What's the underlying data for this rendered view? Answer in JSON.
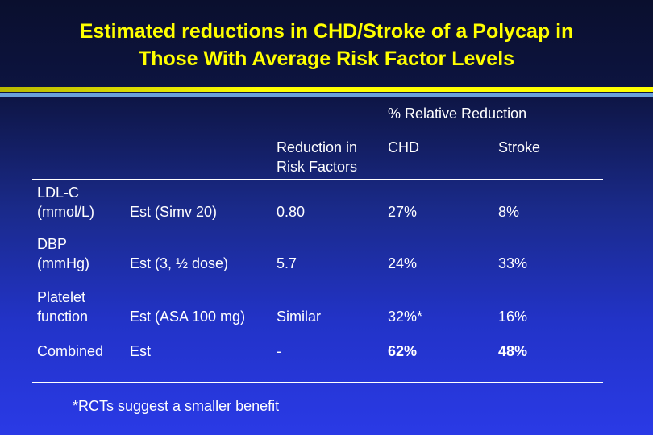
{
  "slide": {
    "title_line1": "Estimated reductions in CHD/Stroke of a Polycap in",
    "title_line2": "Those With Average Risk Factor Levels"
  },
  "table": {
    "group_header": "% Relative Reduction",
    "headers": {
      "reduction_line1": "Reduction in",
      "reduction_line2": "Risk Factors",
      "chd": "CHD",
      "stroke": "Stroke"
    },
    "rows": [
      {
        "factor_line1": "LDL-C",
        "factor_line2": "(mmol/L)",
        "estimate": "Est (Simv  20)",
        "reduction": "0.80",
        "chd": "27%",
        "stroke": "8%"
      },
      {
        "factor_line1": "DBP",
        "factor_line2": "(mmHg)",
        "estimate": "Est (3, ½ dose)",
        "reduction": "5.7",
        "chd": "24%",
        "stroke": "33%"
      },
      {
        "factor_line1": "Platelet",
        "factor_line2": "function",
        "estimate": "Est (ASA  100 mg)",
        "reduction": "Similar",
        "chd": "32%*",
        "stroke": "16%"
      },
      {
        "factor_line1": "Combined",
        "estimate": "Est",
        "reduction": "-",
        "chd": "62%",
        "stroke": "48%"
      }
    ],
    "footnote": "*RCTs suggest a smaller benefit"
  }
}
